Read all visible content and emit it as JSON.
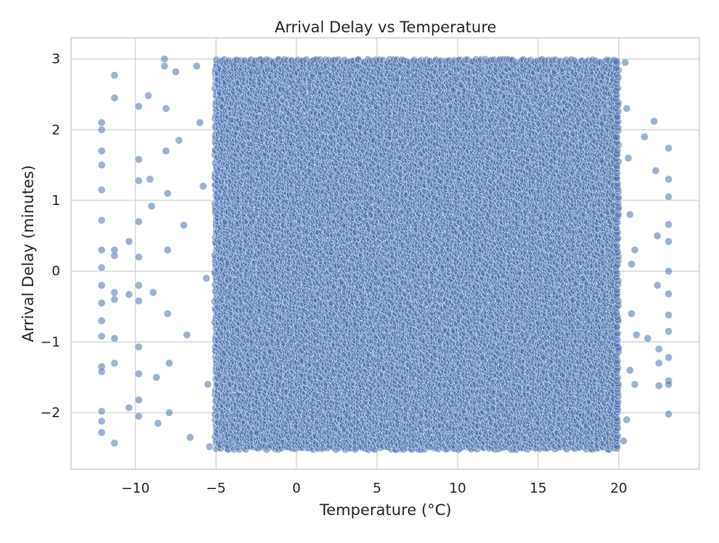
{
  "chart_data": {
    "type": "scatter",
    "title": "Arrival Delay vs Temperature",
    "xlabel": "Temperature (°C)",
    "ylabel": "Arrival Delay (minutes)",
    "xlim": [
      -14,
      25
    ],
    "ylim": [
      -2.8,
      3.3
    ],
    "x_ticks": [
      -10,
      -5,
      0,
      5,
      10,
      15,
      20
    ],
    "x_tick_labels": [
      "−10",
      "−5",
      "0",
      "5",
      "10",
      "15",
      "20"
    ],
    "y_ticks": [
      -2,
      -1,
      0,
      1,
      2,
      3
    ],
    "y_tick_labels": [
      "−2",
      "−1",
      "0",
      "1",
      "2",
      "3"
    ],
    "grid": true,
    "legend": "none",
    "colors": {
      "marker": "#4C72B0",
      "marker_edge": "#ffffff",
      "grid": "#d5d5d5",
      "spine": "#cccccc",
      "background": "#ffffff"
    },
    "series": [
      {
        "dense_region": {
          "x": [
            -5,
            20
          ],
          "y": [
            -2.5,
            3.0
          ]
        },
        "points": [
          [
            -12.1,
            2.1
          ],
          [
            -12.1,
            2.0
          ],
          [
            -12.1,
            1.7
          ],
          [
            -12.1,
            1.5
          ],
          [
            -12.1,
            1.15
          ],
          [
            -12.1,
            0.72
          ],
          [
            -12.1,
            0.3
          ],
          [
            -12.1,
            0.05
          ],
          [
            -12.1,
            -0.2
          ],
          [
            -12.1,
            -0.45
          ],
          [
            -12.1,
            -0.7
          ],
          [
            -12.1,
            -0.92
          ],
          [
            -12.1,
            -1.35
          ],
          [
            -12.1,
            -1.42
          ],
          [
            -12.1,
            -1.98
          ],
          [
            -12.1,
            -2.12
          ],
          [
            -12.1,
            -2.28
          ],
          [
            -11.3,
            2.77
          ],
          [
            -11.3,
            2.45
          ],
          [
            -11.3,
            0.3
          ],
          [
            -11.3,
            0.22
          ],
          [
            -11.3,
            -0.3
          ],
          [
            -11.3,
            -0.4
          ],
          [
            -11.3,
            -0.95
          ],
          [
            -11.3,
            -1.3
          ],
          [
            -11.3,
            -2.43
          ],
          [
            -10.4,
            0.42
          ],
          [
            -10.4,
            -0.33
          ],
          [
            -10.4,
            -1.93
          ],
          [
            -9.8,
            2.33
          ],
          [
            -9.8,
            1.58
          ],
          [
            -9.8,
            1.28
          ],
          [
            -9.8,
            0.7
          ],
          [
            -9.8,
            0.2
          ],
          [
            -9.8,
            -0.2
          ],
          [
            -9.8,
            -0.42
          ],
          [
            -9.8,
            -1.07
          ],
          [
            -9.8,
            -1.45
          ],
          [
            -9.8,
            -1.82
          ],
          [
            -9.8,
            -2.05
          ],
          [
            -9.2,
            2.48
          ],
          [
            -9.1,
            1.3
          ],
          [
            -9.0,
            0.92
          ],
          [
            -8.9,
            -0.3
          ],
          [
            -8.7,
            -1.5
          ],
          [
            -8.6,
            -2.15
          ],
          [
            -8.2,
            3.0
          ],
          [
            -8.2,
            2.9
          ],
          [
            -8.1,
            2.3
          ],
          [
            -8.1,
            1.7
          ],
          [
            -8.0,
            1.1
          ],
          [
            -8.0,
            0.3
          ],
          [
            -8.0,
            -0.6
          ],
          [
            -7.9,
            -1.3
          ],
          [
            -7.9,
            -2.0
          ],
          [
            -7.5,
            2.82
          ],
          [
            -7.3,
            1.85
          ],
          [
            -7.0,
            0.65
          ],
          [
            -6.8,
            -0.9
          ],
          [
            -6.6,
            -2.35
          ],
          [
            -6.2,
            2.9
          ],
          [
            -6.0,
            2.1
          ],
          [
            -5.8,
            1.2
          ],
          [
            -5.6,
            -0.1
          ],
          [
            -5.5,
            -1.6
          ],
          [
            -5.4,
            -2.48
          ],
          [
            20.4,
            2.95
          ],
          [
            20.5,
            2.3
          ],
          [
            20.6,
            1.6
          ],
          [
            20.7,
            0.8
          ],
          [
            20.8,
            0.1
          ],
          [
            20.8,
            -0.6
          ],
          [
            20.7,
            -1.4
          ],
          [
            20.5,
            -2.1
          ],
          [
            20.3,
            -2.4
          ],
          [
            21.0,
            0.3
          ],
          [
            21.1,
            -0.9
          ],
          [
            21.0,
            -1.6
          ],
          [
            21.6,
            1.9
          ],
          [
            21.8,
            -0.95
          ],
          [
            22.2,
            2.12
          ],
          [
            22.3,
            1.42
          ],
          [
            22.4,
            0.5
          ],
          [
            22.4,
            -0.2
          ],
          [
            22.5,
            -1.1
          ],
          [
            22.5,
            -1.3
          ],
          [
            22.5,
            -1.62
          ],
          [
            23.1,
            1.74
          ],
          [
            23.1,
            1.3
          ],
          [
            23.1,
            1.05
          ],
          [
            23.1,
            0.66
          ],
          [
            23.1,
            0.42
          ],
          [
            23.1,
            0.0
          ],
          [
            23.1,
            -0.32
          ],
          [
            23.1,
            -0.62
          ],
          [
            23.1,
            -0.85
          ],
          [
            23.1,
            -1.22
          ],
          [
            23.1,
            -1.55
          ],
          [
            23.1,
            -1.6
          ],
          [
            23.1,
            -2.02
          ]
        ]
      }
    ]
  }
}
